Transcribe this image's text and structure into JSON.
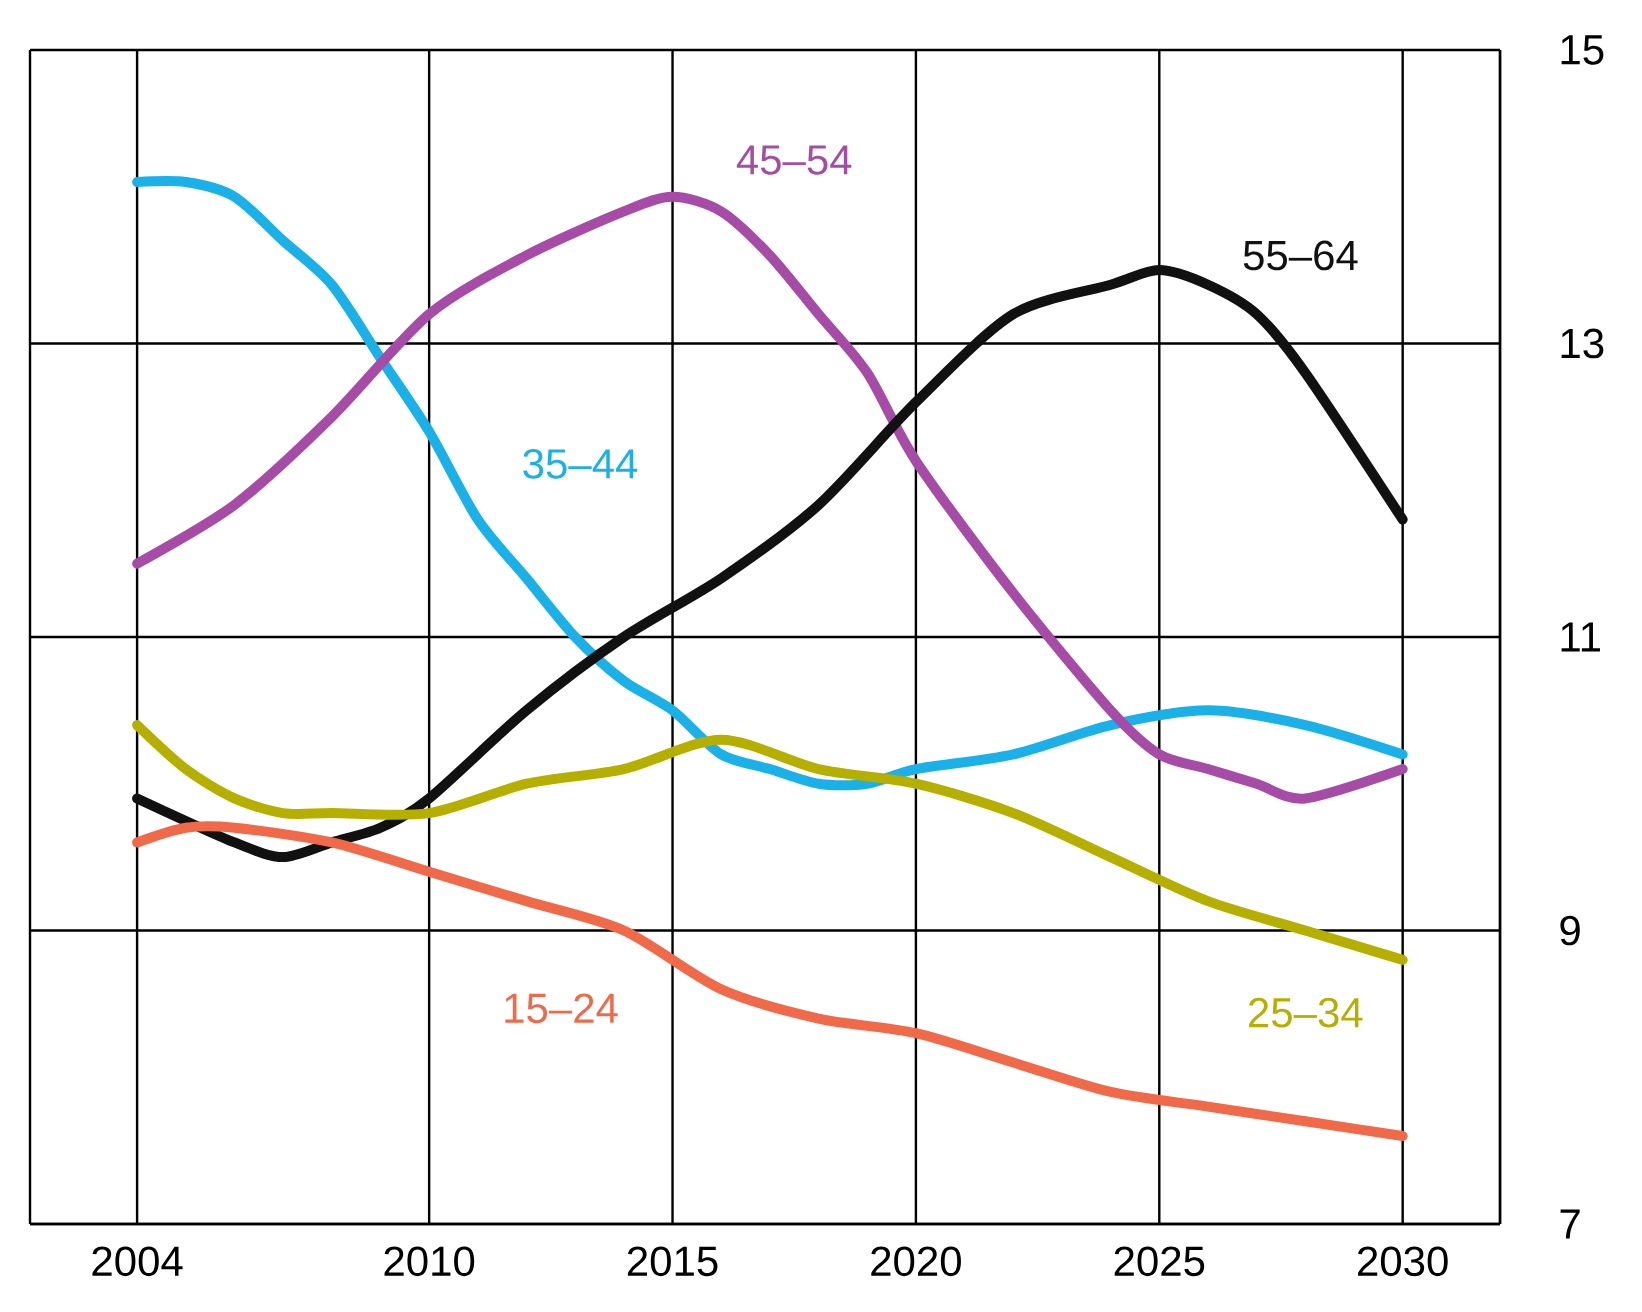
{
  "chart_data": {
    "type": "line",
    "xlim": [
      2001.8,
      2032
    ],
    "ylim": [
      7,
      15
    ],
    "xticks": [
      2004,
      2010,
      2015,
      2020,
      2025,
      2030
    ],
    "yticks": [
      7,
      9,
      11,
      13,
      15
    ],
    "grid": true,
    "tick_labels": "xy",
    "line_style": "solid",
    "marker": "none",
    "series": [
      {
        "name": "35–44",
        "color": "#1ab0e8",
        "x": [
          2004,
          2005,
          2006,
          2007,
          2008,
          2009,
          2010,
          2011,
          2012,
          2013,
          2014,
          2015,
          2016,
          2017,
          2018,
          2019,
          2020,
          2022,
          2024,
          2026,
          2028,
          2030
        ],
        "values": [
          14.1,
          14.1,
          14.0,
          13.7,
          13.4,
          12.9,
          12.4,
          11.8,
          11.4,
          11.0,
          10.7,
          10.5,
          10.2,
          10.1,
          10.0,
          10.0,
          10.1,
          10.2,
          10.4,
          10.5,
          10.4,
          10.2
        ]
      },
      {
        "name": "45–54",
        "color": "#a64ca6",
        "x": [
          2004,
          2006,
          2008,
          2010,
          2012,
          2014,
          2015,
          2016,
          2017,
          2018,
          2019,
          2020,
          2022,
          2024,
          2025,
          2026,
          2027,
          2028,
          2030
        ],
        "values": [
          11.5,
          11.9,
          12.5,
          13.2,
          13.6,
          13.9,
          14.0,
          13.9,
          13.6,
          13.2,
          12.8,
          12.2,
          11.3,
          10.5,
          10.2,
          10.1,
          10.0,
          9.9,
          10.1
        ]
      },
      {
        "name": "55–64",
        "color": "#111111",
        "x": [
          2004,
          2006,
          2007,
          2008,
          2009,
          2010,
          2012,
          2014,
          2016,
          2018,
          2020,
          2022,
          2024,
          2025,
          2026,
          2027,
          2028,
          2030
        ],
        "values": [
          9.9,
          9.6,
          9.5,
          9.6,
          9.7,
          9.9,
          10.5,
          11.0,
          11.4,
          11.9,
          12.6,
          13.2,
          13.4,
          13.5,
          13.4,
          13.2,
          12.8,
          11.8
        ]
      },
      {
        "name": "25–34",
        "color": "#b5b000",
        "x": [
          2004,
          2005,
          2006,
          2007,
          2008,
          2010,
          2012,
          2014,
          2016,
          2018,
          2020,
          2022,
          2024,
          2026,
          2028,
          2030
        ],
        "values": [
          10.4,
          10.1,
          9.9,
          9.8,
          9.8,
          9.8,
          10.0,
          10.1,
          10.3,
          10.1,
          10.0,
          9.8,
          9.5,
          9.2,
          9.0,
          8.8
        ]
      },
      {
        "name": "15–24",
        "color": "#f06a4a",
        "x": [
          2004,
          2005,
          2006,
          2008,
          2010,
          2012,
          2014,
          2016,
          2018,
          2020,
          2022,
          2024,
          2026,
          2028,
          2030
        ],
        "values": [
          9.6,
          9.7,
          9.7,
          9.6,
          9.4,
          9.2,
          9.0,
          8.6,
          8.4,
          8.3,
          8.1,
          7.9,
          7.8,
          7.7,
          7.6
        ]
      }
    ]
  }
}
